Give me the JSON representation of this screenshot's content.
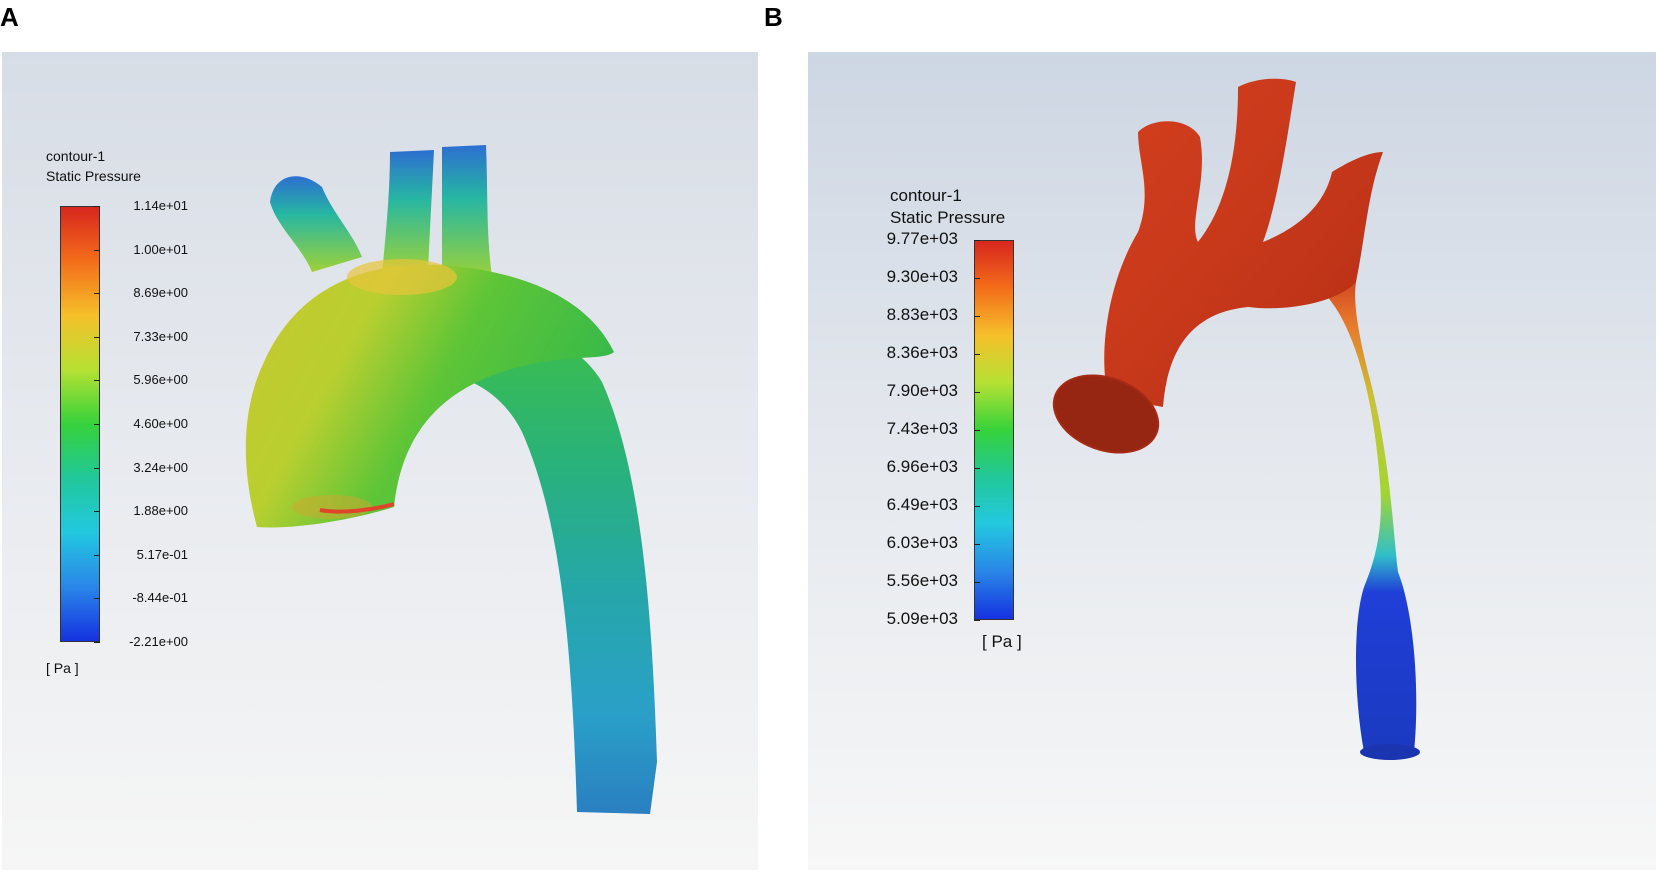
{
  "panels": [
    {
      "label": "A",
      "legend": {
        "name": "contour-1",
        "quantity": "Static Pressure",
        "ticks": [
          "1.14e+01",
          "1.00e+01",
          "8.69e+00",
          "7.33e+00",
          "5.96e+00",
          "4.60e+00",
          "3.24e+00",
          "1.88e+00",
          "5.17e-01",
          "-8.44e-01",
          "-2.21e+00"
        ],
        "unit": "[ Pa ]"
      }
    },
    {
      "label": "B",
      "legend": {
        "name": "contour-1",
        "quantity": "Static Pressure",
        "ticks": [
          "9.77e+03",
          "9.30e+03",
          "8.83e+03",
          "8.36e+03",
          "7.90e+03",
          "7.43e+03",
          "6.96e+03",
          "6.49e+03",
          "6.03e+03",
          "5.56e+03",
          "5.09e+03"
        ],
        "unit": "[ Pa ]"
      }
    }
  ],
  "colormap": [
    "#d7261e",
    "#f46d1a",
    "#f5c02a",
    "#b6e133",
    "#36d23b",
    "#21c89a",
    "#22c8e0",
    "#2a86e8",
    "#1532e0"
  ]
}
